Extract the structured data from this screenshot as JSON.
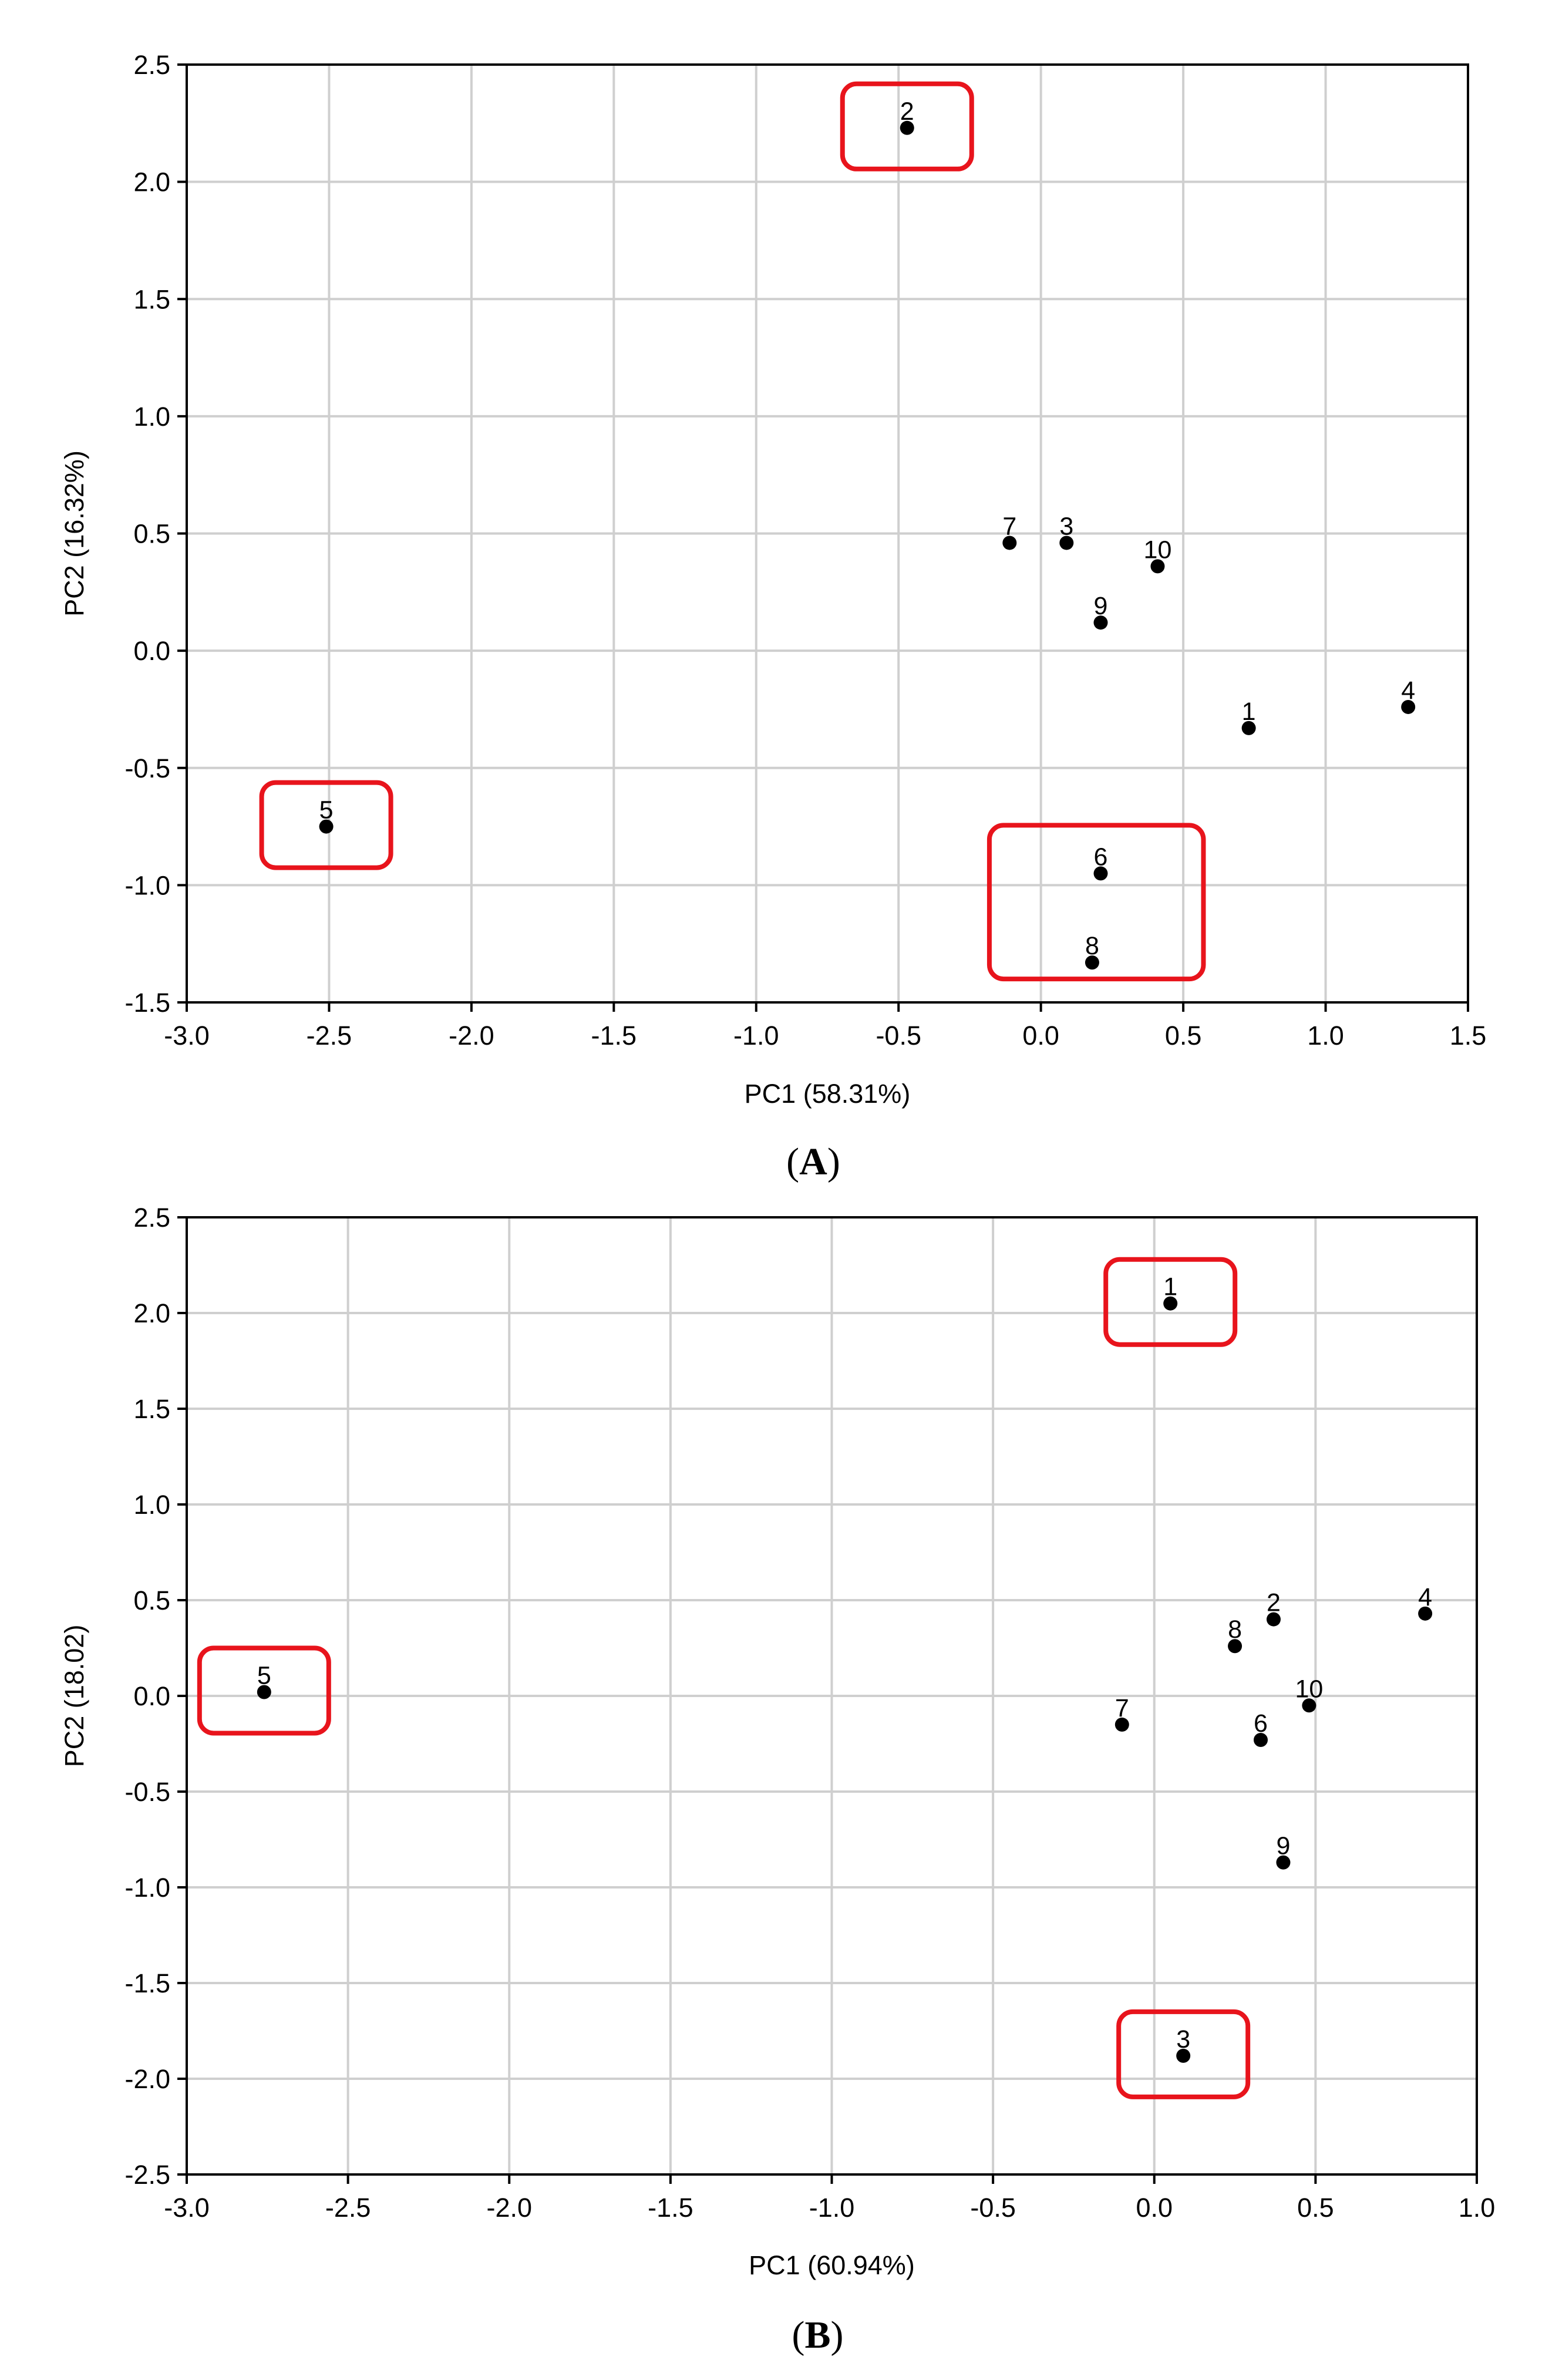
{
  "chart_data": [
    {
      "type": "scatter",
      "caption": "A",
      "xlabel": "PC1 (58.31%)",
      "ylabel": "PC2 (16.32%)",
      "xlim": [
        -3.0,
        1.5
      ],
      "ylim": [
        -1.5,
        2.5
      ],
      "xticks": [
        "-3.0",
        "-2.5",
        "-2.0",
        "-1.5",
        "-1.0",
        "-0.5",
        "0.0",
        "0.5",
        "1.0",
        "1.5"
      ],
      "yticks": [
        "-1.5",
        "-1.0",
        "-0.5",
        "0.0",
        "0.5",
        "1.0",
        "1.5",
        "2.0",
        "2.5"
      ],
      "grid": true,
      "points": [
        {
          "label": "1",
          "x": 0.73,
          "y": -0.33
        },
        {
          "label": "2",
          "x": -0.47,
          "y": 2.23
        },
        {
          "label": "3",
          "x": 0.09,
          "y": 0.46
        },
        {
          "label": "4",
          "x": 1.29,
          "y": -0.24
        },
        {
          "label": "5",
          "x": -2.51,
          "y": -0.75
        },
        {
          "label": "6",
          "x": 0.21,
          "y": -0.95
        },
        {
          "label": "7",
          "x": -0.11,
          "y": 0.46
        },
        {
          "label": "8",
          "x": 0.18,
          "y": -1.33
        },
        {
          "label": "9",
          "x": 0.21,
          "y": 0.12
        },
        {
          "label": "10",
          "x": 0.41,
          "y": 0.36
        }
      ],
      "highlighted": [
        "2",
        "5",
        "6",
        "8"
      ]
    },
    {
      "type": "scatter",
      "caption": "B",
      "xlabel": "PC1 (60.94%)",
      "ylabel": "PC2 (18.02)",
      "xlim": [
        -3.0,
        1.0
      ],
      "ylim": [
        -2.5,
        2.5
      ],
      "xticks": [
        "-3.0",
        "-2.5",
        "-2.0",
        "-1.5",
        "-1.0",
        "-0.5",
        "0.0",
        "0.5",
        "1.0"
      ],
      "yticks": [
        "-2.5",
        "-2.0",
        "-1.5",
        "-1.0",
        "-0.5",
        "0.0",
        "0.5",
        "1.0",
        "1.5",
        "2.0",
        "2.5"
      ],
      "grid": true,
      "points": [
        {
          "label": "1",
          "x": 0.05,
          "y": 2.05
        },
        {
          "label": "2",
          "x": 0.37,
          "y": 0.4
        },
        {
          "label": "3",
          "x": 0.09,
          "y": -1.88
        },
        {
          "label": "4",
          "x": 0.84,
          "y": 0.43
        },
        {
          "label": "5",
          "x": -2.76,
          "y": 0.02
        },
        {
          "label": "6",
          "x": 0.33,
          "y": -0.23
        },
        {
          "label": "7",
          "x": -0.1,
          "y": -0.15
        },
        {
          "label": "8",
          "x": 0.25,
          "y": 0.26
        },
        {
          "label": "9",
          "x": 0.4,
          "y": -0.87
        },
        {
          "label": "10",
          "x": 0.48,
          "y": -0.05
        }
      ],
      "highlighted": [
        "1",
        "3",
        "5"
      ]
    }
  ]
}
